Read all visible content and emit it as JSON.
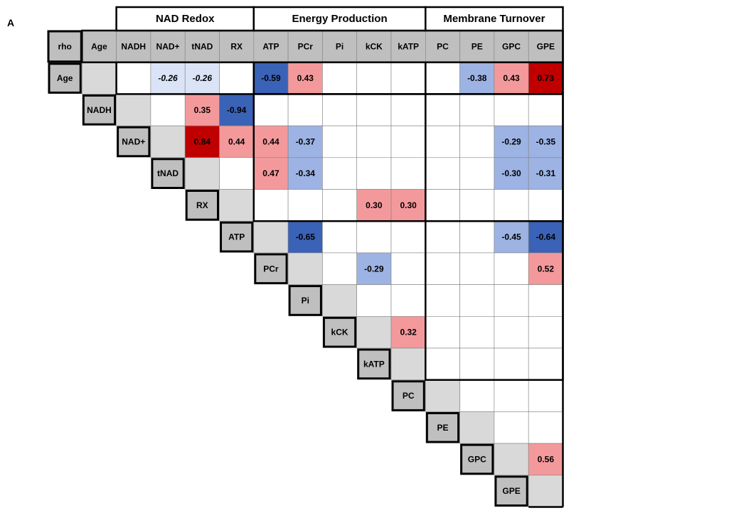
{
  "panel_label": "A",
  "colors": {
    "strong_positive": "#c00000",
    "positive": "#f4999b",
    "strong_negative": "#3a62b6",
    "negative": "#9db3e3",
    "weak_negative": "#dbe4f6",
    "diagonal": "#d9d9d9",
    "header_fill": "#bfbfbf",
    "empty": "#ffffff",
    "line": "#000000"
  },
  "chart_data": {
    "type": "heatmap",
    "corner_label": "rho",
    "row_labels": [
      "Age",
      "NADH",
      "NAD+",
      "tNAD",
      "RX",
      "ATP",
      "PCr",
      "Pi",
      "kCK",
      "kATP",
      "PC",
      "PE",
      "GPC",
      "GPE"
    ],
    "col_labels": [
      "Age",
      "NADH",
      "NAD+",
      "tNAD",
      "RX",
      "ATP",
      "PCr",
      "Pi",
      "kCK",
      "kATP",
      "PC",
      "PE",
      "GPC",
      "GPE"
    ],
    "groups": [
      {
        "name": "NAD Redox",
        "columns": [
          "NADH",
          "NAD+",
          "tNAD",
          "RX"
        ]
      },
      {
        "name": "Energy Production",
        "columns": [
          "ATP",
          "PCr",
          "Pi",
          "kCK",
          "kATP"
        ]
      },
      {
        "name": "Membrane Turnover",
        "columns": [
          "PC",
          "PE",
          "GPC",
          "GPE"
        ]
      }
    ],
    "cells": [
      {
        "row": "Age",
        "col": "NAD+",
        "value": "-0.26",
        "italic": true
      },
      {
        "row": "Age",
        "col": "tNAD",
        "value": "-0.26",
        "italic": true
      },
      {
        "row": "Age",
        "col": "ATP",
        "value": "-0.59"
      },
      {
        "row": "Age",
        "col": "PCr",
        "value": "0.43"
      },
      {
        "row": "Age",
        "col": "PE",
        "value": "-0.38"
      },
      {
        "row": "Age",
        "col": "GPC",
        "value": "0.43"
      },
      {
        "row": "Age",
        "col": "GPE",
        "value": "0.73"
      },
      {
        "row": "NADH",
        "col": "tNAD",
        "value": "0.35"
      },
      {
        "row": "NADH",
        "col": "RX",
        "value": "-0.94"
      },
      {
        "row": "NAD+",
        "col": "tNAD",
        "value": "0.84"
      },
      {
        "row": "NAD+",
        "col": "RX",
        "value": "0.44"
      },
      {
        "row": "NAD+",
        "col": "ATP",
        "value": "0.44"
      },
      {
        "row": "NAD+",
        "col": "PCr",
        "value": "-0.37"
      },
      {
        "row": "NAD+",
        "col": "GPC",
        "value": "-0.29"
      },
      {
        "row": "NAD+",
        "col": "GPE",
        "value": "-0.35"
      },
      {
        "row": "tNAD",
        "col": "ATP",
        "value": "0.47"
      },
      {
        "row": "tNAD",
        "col": "PCr",
        "value": "-0.34"
      },
      {
        "row": "tNAD",
        "col": "GPC",
        "value": "-0.30"
      },
      {
        "row": "tNAD",
        "col": "GPE",
        "value": "-0.31"
      },
      {
        "row": "RX",
        "col": "kCK",
        "value": "0.30"
      },
      {
        "row": "RX",
        "col": "kATP",
        "value": "0.30"
      },
      {
        "row": "ATP",
        "col": "PCr",
        "value": "-0.65"
      },
      {
        "row": "ATP",
        "col": "GPC",
        "value": "-0.45"
      },
      {
        "row": "ATP",
        "col": "GPE",
        "value": "-0.64"
      },
      {
        "row": "PCr",
        "col": "kCK",
        "value": "-0.29"
      },
      {
        "row": "PCr",
        "col": "GPE",
        "value": "0.52"
      },
      {
        "row": "kCK",
        "col": "kATP",
        "value": "0.32"
      },
      {
        "row": "GPC",
        "col": "GPE",
        "value": "0.56"
      }
    ]
  }
}
